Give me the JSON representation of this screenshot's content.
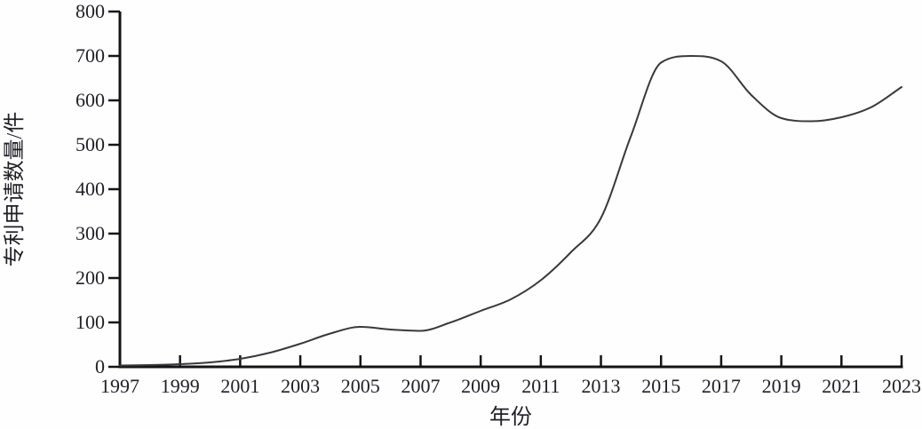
{
  "figure": {
    "background": "#fefefe",
    "ink_color": "#1f1f26",
    "axis_color": "#141414",
    "curve_color": "#38383e"
  },
  "chart_data": {
    "type": "line",
    "title": "",
    "xlabel": "年份",
    "ylabel": "专利申请数量/件",
    "x": [
      1997,
      1998,
      1999,
      2000,
      2001,
      2002,
      2003,
      2004,
      2005,
      2006,
      2007,
      2008,
      2009,
      2010,
      2011,
      2012,
      2013,
      2014,
      2015,
      2016,
      2017,
      2018,
      2019,
      2020,
      2021,
      2022,
      2023
    ],
    "series": [
      {
        "name": "专利申请数量",
        "values": [
          3,
          4,
          6,
          10,
          18,
          32,
          52,
          75,
          90,
          84,
          81,
          100,
          126,
          152,
          195,
          258,
          335,
          520,
          685,
          700,
          688,
          612,
          560,
          553,
          562,
          585,
          630
        ]
      }
    ],
    "xticks": [
      1997,
      1999,
      2001,
      2003,
      2005,
      2007,
      2009,
      2011,
      2013,
      2015,
      2017,
      2019,
      2021,
      2023
    ],
    "yticks": [
      0,
      100,
      200,
      300,
      400,
      500,
      600,
      700,
      800
    ],
    "xlim": [
      1997,
      2023
    ],
    "ylim": [
      0,
      800
    ],
    "grid": false,
    "legend_position": "none",
    "line_width": 2
  }
}
